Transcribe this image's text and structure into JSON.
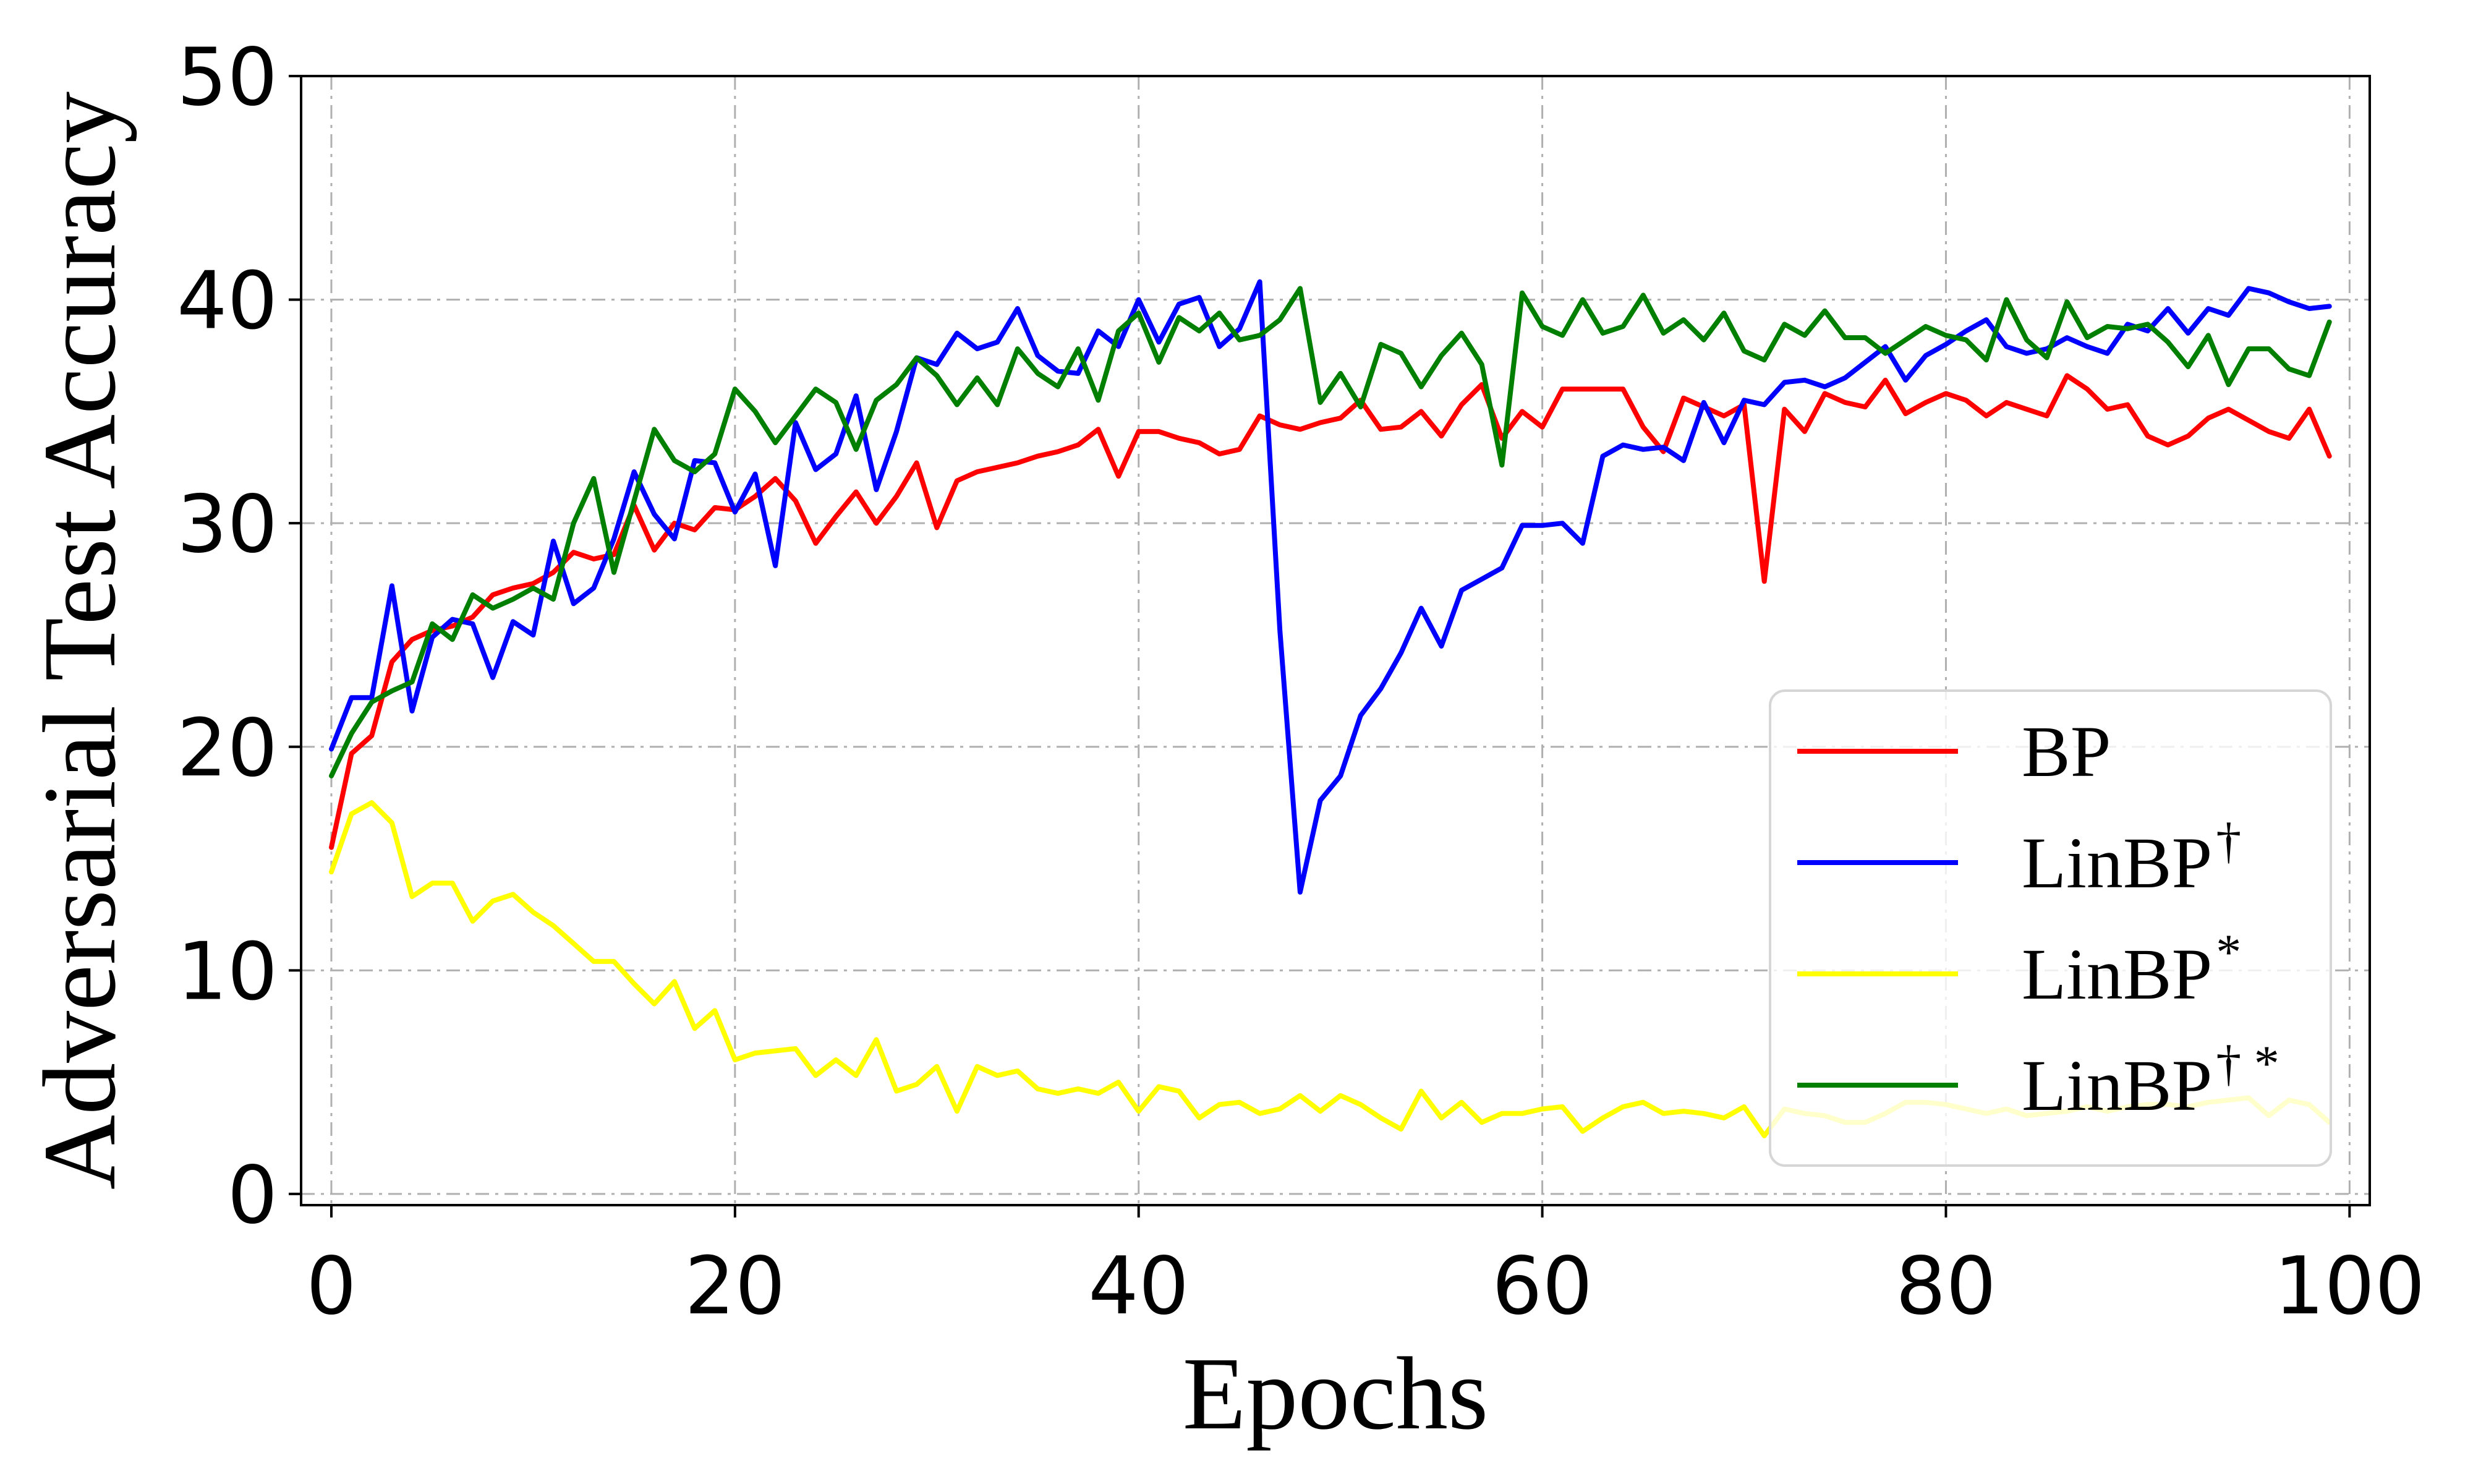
{
  "chart_data": {
    "type": "line",
    "xlabel": "Epochs",
    "ylabel": "Adversarial Test Accuracy",
    "xlim": [
      -1.5,
      101
    ],
    "ylim": [
      -0.5,
      50
    ],
    "xticks": [
      0,
      20,
      40,
      60,
      80,
      100
    ],
    "yticks": [
      0,
      10,
      20,
      30,
      40,
      50
    ],
    "xtick_labels": [
      "0",
      "20",
      "40",
      "60",
      "80",
      "100"
    ],
    "ytick_labels": [
      "0",
      "10",
      "20",
      "30",
      "40",
      "50"
    ],
    "grid": true,
    "legend_position": "lower-right",
    "series": [
      {
        "name": "BP",
        "color": "#ff0000",
        "values": [
          15.5,
          19.7,
          20.5,
          23.8,
          24.8,
          25.2,
          25.4,
          25.8,
          26.8,
          27.1,
          27.3,
          27.8,
          28.7,
          28.4,
          28.6,
          30.8,
          28.8,
          30.0,
          29.7,
          30.7,
          30.6,
          31.2,
          32.0,
          31.0,
          29.1,
          30.3,
          31.4,
          30.0,
          31.2,
          32.7,
          29.8,
          31.9,
          32.3,
          32.5,
          32.7,
          33.0,
          33.2,
          33.5,
          34.2,
          32.1,
          34.1,
          34.1,
          33.8,
          33.6,
          33.1,
          33.3,
          34.8,
          34.4,
          34.2,
          34.5,
          34.7,
          35.5,
          34.2,
          34.3,
          35.0,
          33.9,
          35.3,
          36.2,
          33.8,
          35.0,
          34.3,
          36.0,
          36.0,
          36.0,
          36.0,
          34.3,
          33.2,
          35.6,
          35.2,
          34.8,
          35.3,
          27.4,
          35.1,
          34.1,
          35.8,
          35.4,
          35.2,
          36.4,
          34.9,
          35.4,
          35.8,
          35.5,
          34.8,
          35.4,
          35.1,
          34.8,
          36.6,
          36.0,
          35.1,
          35.3,
          33.9,
          33.5,
          33.9,
          34.7,
          35.1,
          34.6,
          34.1,
          33.8,
          35.1,
          33.0
        ]
      },
      {
        "name": "LinBP",
        "name_sup": "†",
        "color": "#0000ff",
        "values": [
          19.9,
          22.2,
          22.2,
          27.2,
          21.6,
          24.9,
          25.7,
          25.5,
          23.1,
          25.6,
          25.0,
          29.2,
          26.4,
          27.1,
          29.3,
          32.3,
          30.4,
          29.3,
          32.8,
          32.7,
          30.5,
          32.2,
          28.1,
          34.5,
          32.4,
          33.1,
          35.7,
          31.5,
          34.1,
          37.4,
          37.1,
          38.5,
          37.8,
          38.1,
          39.6,
          37.5,
          36.8,
          36.7,
          38.6,
          37.9,
          40.0,
          38.1,
          39.8,
          40.1,
          37.9,
          38.7,
          40.8,
          25.2,
          13.5,
          17.6,
          18.7,
          21.4,
          22.6,
          24.2,
          26.2,
          24.5,
          27.0,
          27.5,
          28.0,
          29.9,
          29.9,
          30.0,
          29.1,
          33.0,
          33.5,
          33.3,
          33.4,
          32.8,
          35.4,
          33.6,
          35.5,
          35.3,
          36.3,
          36.4,
          36.1,
          36.5,
          37.2,
          37.9,
          36.4,
          37.5,
          38.0,
          38.6,
          39.1,
          37.9,
          37.6,
          37.8,
          38.3,
          37.9,
          37.6,
          38.9,
          38.6,
          39.6,
          38.5,
          39.6,
          39.3,
          40.5,
          40.3,
          39.9,
          39.6,
          39.7
        ]
      },
      {
        "name": "LinBP",
        "name_sup": "*",
        "color": "#ffff00",
        "values": [
          14.4,
          17.0,
          17.5,
          16.6,
          13.3,
          13.9,
          13.9,
          12.2,
          13.1,
          13.4,
          12.6,
          12.0,
          11.2,
          10.4,
          10.4,
          9.4,
          8.5,
          9.5,
          7.4,
          8.2,
          6.0,
          6.3,
          6.4,
          6.5,
          5.3,
          6.0,
          5.3,
          6.9,
          4.6,
          4.9,
          5.7,
          3.7,
          5.7,
          5.3,
          5.5,
          4.7,
          4.5,
          4.7,
          4.5,
          5.0,
          3.7,
          4.8,
          4.6,
          3.4,
          4.0,
          4.1,
          3.6,
          3.8,
          4.4,
          3.7,
          4.4,
          4.0,
          3.4,
          2.9,
          4.6,
          3.4,
          4.1,
          3.2,
          3.6,
          3.6,
          3.8,
          3.9,
          2.8,
          3.4,
          3.9,
          4.1,
          3.6,
          3.7,
          3.6,
          3.4,
          3.9,
          2.6,
          3.8,
          3.6,
          3.5,
          3.2,
          3.2,
          3.6,
          4.1,
          4.1,
          4.0,
          3.8,
          3.6,
          3.8,
          3.5,
          3.6,
          3.7,
          3.9,
          3.7,
          3.9,
          4.0,
          4.0,
          3.9,
          4.1,
          4.2,
          4.3,
          3.5,
          4.2,
          4.0,
          3.2
        ]
      },
      {
        "name": "LinBP",
        "name_sup": "† *",
        "color": "#007f00",
        "values": [
          18.7,
          20.6,
          22.0,
          22.5,
          22.9,
          25.5,
          24.8,
          26.8,
          26.2,
          26.6,
          27.1,
          26.6,
          30.0,
          32.0,
          27.8,
          31.0,
          34.2,
          32.8,
          32.3,
          33.1,
          36.0,
          35.0,
          33.6,
          34.8,
          36.0,
          35.4,
          33.3,
          35.5,
          36.2,
          37.4,
          36.6,
          35.3,
          36.5,
          35.3,
          37.8,
          36.7,
          36.1,
          37.8,
          35.5,
          38.6,
          39.4,
          37.2,
          39.2,
          38.6,
          39.4,
          38.2,
          38.4,
          39.1,
          40.5,
          35.4,
          36.7,
          35.2,
          38.0,
          37.6,
          36.1,
          37.5,
          38.5,
          37.1,
          32.6,
          40.3,
          38.8,
          38.4,
          40.0,
          38.5,
          38.8,
          40.2,
          38.5,
          39.1,
          38.2,
          39.4,
          37.7,
          37.3,
          38.9,
          38.4,
          39.5,
          38.3,
          38.3,
          37.6,
          38.2,
          38.8,
          38.4,
          38.2,
          37.3,
          40.0,
          38.2,
          37.4,
          39.9,
          38.3,
          38.8,
          38.7,
          38.9,
          38.1,
          37.0,
          38.4,
          36.2,
          37.8,
          37.8,
          36.9,
          36.6,
          39.0
        ]
      }
    ]
  }
}
